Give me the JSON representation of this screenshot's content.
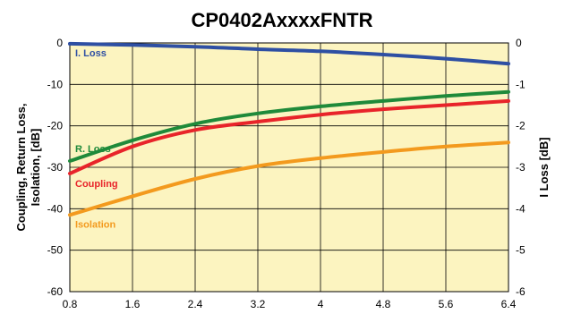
{
  "chart_data": {
    "type": "line",
    "title": "CP0402AxxxxFNTR",
    "xlabel": "",
    "ylabel": "Coupling, Return Loss,\nIsolation, [dB]",
    "y2label": "I Loss [dB]",
    "xlim": [
      0.8,
      6.4
    ],
    "ylim": [
      -60,
      0
    ],
    "y2lim": [
      -6,
      0
    ],
    "x_ticks": [
      "0.8",
      "1.6",
      "2.4",
      "3.2",
      "4",
      "4.8",
      "5.6",
      "6.4"
    ],
    "y_ticks": [
      "0",
      "-10",
      "-20",
      "-30",
      "-40",
      "-50",
      "-60"
    ],
    "y2_ticks": [
      "0",
      "-1",
      "-2",
      "-3",
      "-4",
      "-5",
      "-6"
    ],
    "grid": true,
    "plot_background": "#fcf4c0",
    "series": [
      {
        "name": "I. Loss",
        "axis": "right",
        "color": "#2e4fa3",
        "label_color": "#2e4fa3",
        "x": [
          0.8,
          1.6,
          2.4,
          3.2,
          4.0,
          4.8,
          5.6,
          6.4
        ],
        "values": [
          -0.02,
          -0.05,
          -0.09,
          -0.15,
          -0.2,
          -0.28,
          -0.38,
          -0.5
        ]
      },
      {
        "name": "R. Loss",
        "axis": "left",
        "color": "#1f8a3a",
        "label_color": "#1f8a3a",
        "x": [
          0.8,
          1.6,
          2.4,
          3.2,
          4.0,
          4.8,
          5.6,
          6.4
        ],
        "values": [
          -28.5,
          -23.5,
          -19.5,
          -17.0,
          -15.3,
          -14.0,
          -12.8,
          -11.8
        ]
      },
      {
        "name": "Coupling",
        "axis": "left",
        "color": "#e8242a",
        "label_color": "#e8242a",
        "x": [
          0.8,
          1.6,
          2.4,
          3.2,
          4.0,
          4.8,
          5.6,
          6.4
        ],
        "values": [
          -31.5,
          -25.0,
          -21.0,
          -19.0,
          -17.3,
          -16.0,
          -15.0,
          -14.0
        ]
      },
      {
        "name": "Isolation",
        "axis": "left",
        "color": "#f39a1e",
        "label_color": "#f39a1e",
        "x": [
          0.8,
          1.6,
          2.4,
          3.2,
          4.0,
          4.8,
          5.6,
          6.4
        ],
        "values": [
          -41.5,
          -37.0,
          -32.8,
          -29.7,
          -27.8,
          -26.3,
          -25.0,
          -24.0
        ]
      }
    ]
  }
}
